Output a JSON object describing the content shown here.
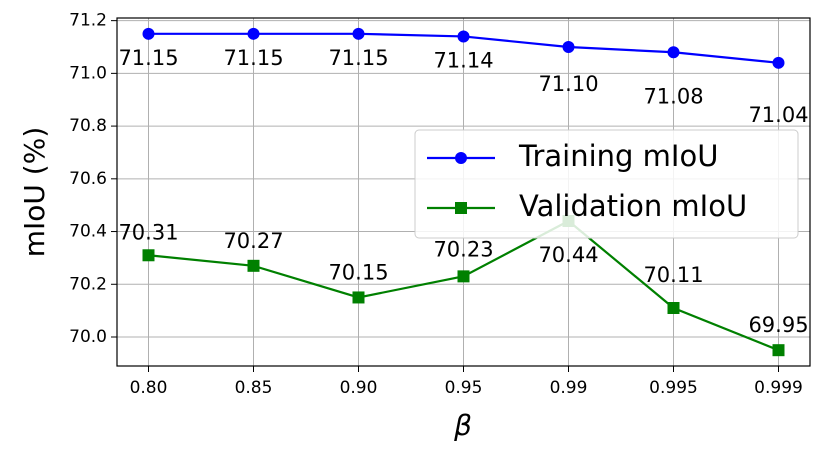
{
  "chart_data": {
    "type": "line",
    "x_label": "β",
    "y_label": "mIoU (%)",
    "categories": [
      "0.80",
      "0.85",
      "0.90",
      "0.95",
      "0.99",
      "0.995",
      "0.999"
    ],
    "series": [
      {
        "name": "Training mIoU",
        "color": "#0000ff",
        "marker": "circle",
        "values": [
          71.15,
          71.15,
          71.15,
          71.14,
          71.1,
          71.08,
          71.04
        ],
        "value_labels": [
          "71.15",
          "71.15",
          "71.15",
          "71.14",
          "71.10",
          "71.08",
          "71.04"
        ]
      },
      {
        "name": "Validation mIoU",
        "color": "#008000",
        "marker": "square",
        "values": [
          70.31,
          70.27,
          70.15,
          70.23,
          70.44,
          70.11,
          69.95
        ],
        "value_labels": [
          "70.31",
          "70.27",
          "70.15",
          "70.23",
          "70.44",
          "70.11",
          "69.95"
        ]
      }
    ],
    "ylim": [
      69.89,
      71.21
    ],
    "yticks": [
      {
        "value": 70.0,
        "label": "70.0"
      },
      70.2,
      70.4,
      70.6,
      70.8,
      {
        "value": 71.0,
        "label": "71.0"
      },
      71.2
    ],
    "grid": true,
    "legend": "center right"
  }
}
